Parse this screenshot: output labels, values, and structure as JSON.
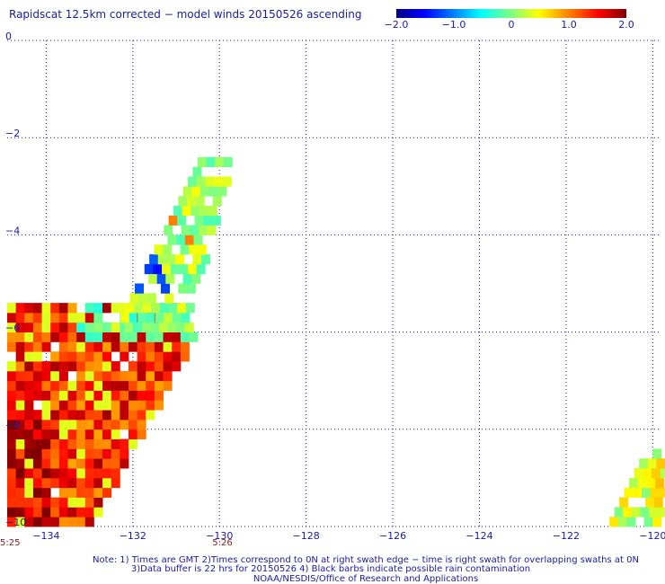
{
  "chart_data": {
    "type": "heatmap",
    "title": "Rapidscat 12.5km corrected − model winds 20150526 ascending",
    "xlim": [
      -134.9,
      -119.8
    ],
    "ylim": [
      -10,
      0
    ],
    "x_ticks": [
      -134,
      -132,
      -130,
      -128,
      -126,
      -124,
      -122,
      -120
    ],
    "x_tick_labels": [
      "−134",
      "−132",
      "−130",
      "−128",
      "−126",
      "−124",
      "−122",
      "−120"
    ],
    "y_ticks": [
      0,
      -2,
      -4,
      -6,
      -8,
      -10
    ],
    "y_tick_labels": [
      "0",
      "−2",
      "−4",
      "−6",
      "−8",
      "−10"
    ],
    "grid": true,
    "cell_size_deg": 0.2,
    "colorbar": {
      "range": [
        -2.0,
        2.0
      ],
      "tick_values": [
        -2.0,
        -1.0,
        0,
        1.0,
        2.0
      ],
      "tick_labels": [
        "−2.0",
        "−1.0",
        "0",
        "1.0",
        "2.0"
      ],
      "colors": [
        "#000080",
        "#0000ff",
        "#0080ff",
        "#00ffff",
        "#80ff80",
        "#ffff00",
        "#ff8000",
        "#ff0000",
        "#800000"
      ]
    },
    "swath_times": [
      {
        "label": "5:25",
        "lon": -134.9
      },
      {
        "label": "5:26",
        "lon": -130.0
      }
    ],
    "notes": [
      "Note: 1) Times are GMT 2)Times correspond to 0N at right swath edge − time is right swath for overlapping swaths at 0N",
      "3)Data buffer is 22 hrs for 20150526 4) Black barbs indicate possible rain contamination",
      "NOAA/NESDIS/Office of Research and Applications"
    ],
    "cells_description": "wind speed difference (m/s) per 0.2 degree cell",
    "swath_regions": [
      {
        "name": "western swath",
        "lat_range": [
          -10,
          -5.6
        ],
        "lon_west": -134.9,
        "lon_east_at_top": -130.2,
        "lon_east_at_bottom": -133.0,
        "value_trend": "mostly 0.8 to 2.0"
      },
      {
        "name": "northern arm",
        "lat_range": [
          -6.0,
          -2.5
        ],
        "lon_center_top": -130.2,
        "lon_center_bottom": -131.3,
        "value_trend": "mostly -1.6 to 0.4"
      },
      {
        "name": "eastern edge",
        "lat_range": [
          -10,
          -8.6
        ],
        "lon_range": [
          -121.0,
          -119.8
        ],
        "value_trend": "mostly -0.2 to 0.8"
      }
    ]
  }
}
